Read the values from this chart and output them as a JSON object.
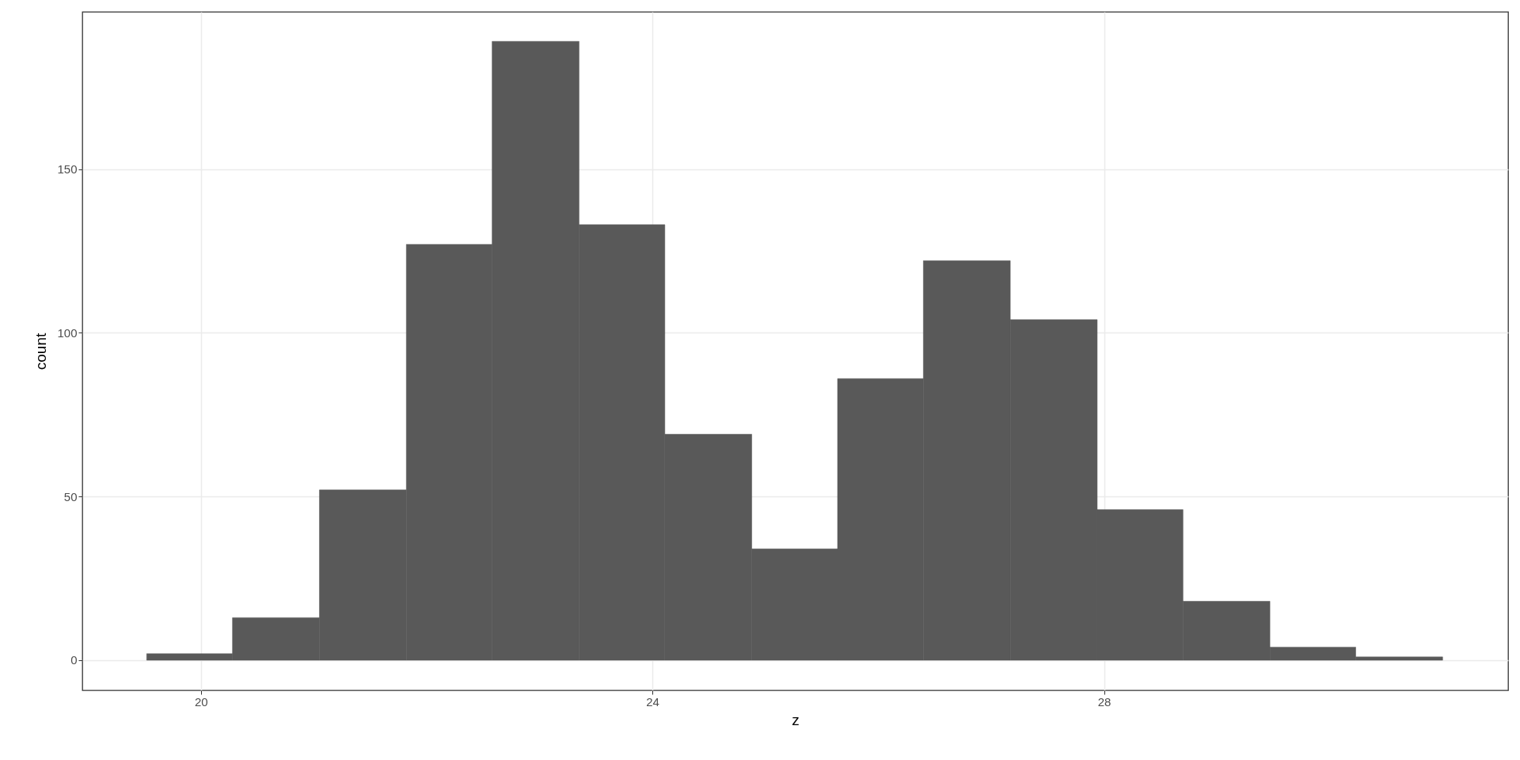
{
  "chart_data": {
    "type": "histogram",
    "xlabel": "z",
    "ylabel": "count",
    "bins": [
      19.52,
      20.28,
      21.05,
      21.82,
      22.58,
      23.35,
      24.11,
      24.88,
      25.64,
      26.4,
      27.17,
      27.94,
      28.7,
      29.47,
      30.23,
      31.0
    ],
    "values": [
      2,
      13,
      52,
      127,
      189,
      133,
      69,
      34,
      86,
      122,
      104,
      46,
      18,
      4,
      1
    ],
    "color": "#595959",
    "xlim": [
      18.95,
      31.58
    ],
    "xticks": [
      20,
      24,
      28
    ],
    "ylim": [
      -9.2,
      198
    ],
    "yticks": [
      0,
      50,
      100,
      150
    ],
    "grid": true
  }
}
